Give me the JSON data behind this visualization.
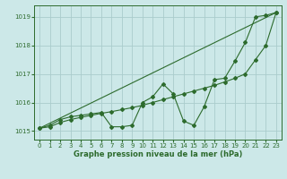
{
  "title": "Graphe pression niveau de la mer (hPa)",
  "background_color": "#cce8e8",
  "grid_color": "#aacccc",
  "line_color": "#2d6b2d",
  "xlim": [
    -0.5,
    23.5
  ],
  "ylim": [
    1014.7,
    1019.4
  ],
  "xticks": [
    0,
    1,
    2,
    3,
    4,
    5,
    6,
    7,
    8,
    9,
    10,
    11,
    12,
    13,
    14,
    15,
    16,
    17,
    18,
    19,
    20,
    21,
    22,
    23
  ],
  "yticks": [
    1015,
    1016,
    1017,
    1018,
    1019
  ],
  "line1_x": [
    0,
    1,
    2,
    3,
    4,
    5,
    6,
    7,
    8,
    9,
    10,
    11,
    12,
    13,
    14,
    15,
    16,
    17,
    18,
    19,
    20,
    21,
    22,
    23
  ],
  "line1_y": [
    1015.1,
    1015.2,
    1015.4,
    1015.5,
    1015.55,
    1015.6,
    1015.65,
    1015.15,
    1015.15,
    1015.2,
    1016.0,
    1016.2,
    1016.65,
    1016.3,
    1015.35,
    1015.2,
    1015.85,
    1016.8,
    1016.85,
    1017.45,
    1018.1,
    1019.0,
    1019.05,
    1019.15
  ],
  "line2_x": [
    0,
    23
  ],
  "line2_y": [
    1015.1,
    1019.15
  ],
  "line3_x": [
    0,
    1,
    2,
    3,
    4,
    5,
    6,
    7,
    8,
    9,
    10,
    11,
    12,
    13,
    14,
    15,
    16,
    17,
    18,
    19,
    20,
    21,
    22,
    23
  ],
  "line3_y": [
    1015.1,
    1015.15,
    1015.3,
    1015.4,
    1015.48,
    1015.55,
    1015.62,
    1015.68,
    1015.75,
    1015.82,
    1015.9,
    1016.0,
    1016.1,
    1016.2,
    1016.3,
    1016.4,
    1016.5,
    1016.6,
    1016.72,
    1016.85,
    1017.0,
    1017.5,
    1018.0,
    1019.15
  ]
}
